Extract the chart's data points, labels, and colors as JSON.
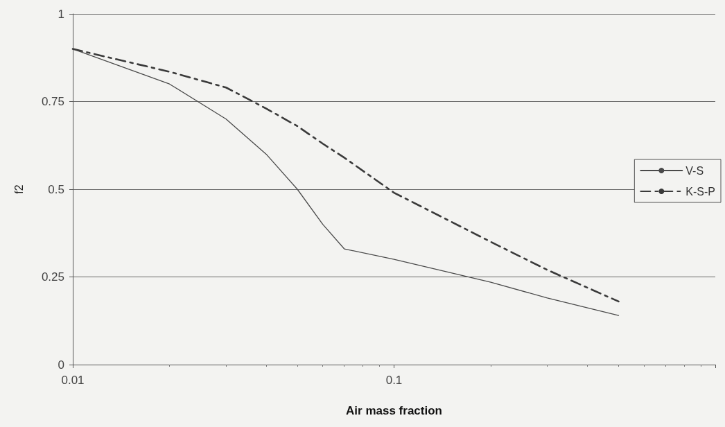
{
  "chart_data": {
    "type": "line",
    "xlabel": "Air mass fraction",
    "ylabel": "f2",
    "log": "x",
    "xlim": [
      0.01,
      1
    ],
    "xticks": [
      0.01,
      0.1,
      {
        "value": 1,
        "label": null
      }
    ],
    "ylim": [
      0,
      1
    ],
    "yticks": [
      0,
      0.25,
      0.5,
      0.75,
      1
    ],
    "grid": "y",
    "legend": "right",
    "marker": "none",
    "series": [
      {
        "name": "V-S",
        "color": "#4a4a4a",
        "line_style": "solid",
        "x": [
          0.01,
          0.02,
          0.03,
          0.04,
          0.05,
          0.06,
          0.07,
          0.1,
          0.2,
          0.3,
          0.5
        ],
        "values": [
          0.9,
          0.8,
          0.7,
          0.6,
          0.5,
          0.4,
          0.33,
          0.3,
          0.235,
          0.19,
          0.14
        ]
      },
      {
        "name": "K-S-P",
        "color": "#3a3a3a",
        "line_style": "dashed",
        "x": [
          0.01,
          0.02,
          0.03,
          0.04,
          0.05,
          0.06,
          0.07,
          0.1,
          0.2,
          0.3,
          0.5
        ],
        "values": [
          0.9,
          0.835,
          0.79,
          0.73,
          0.68,
          0.63,
          0.59,
          0.49,
          0.35,
          0.27,
          0.18
        ]
      }
    ]
  }
}
